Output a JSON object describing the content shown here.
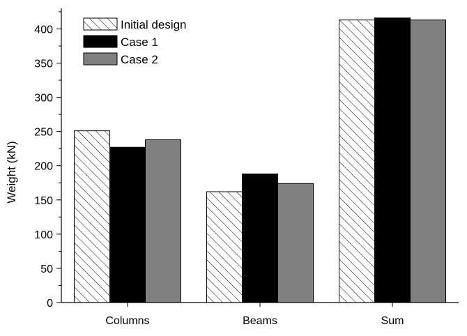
{
  "chart_data": {
    "type": "bar",
    "categories": [
      "Columns",
      "Beams",
      "Sum"
    ],
    "series": [
      {
        "name": "Initial design",
        "values": [
          251,
          162,
          413
        ],
        "fill": "hatch"
      },
      {
        "name": "Case 1",
        "values": [
          227,
          188,
          416
        ],
        "color": "#000000"
      },
      {
        "name": "Case 2",
        "values": [
          238,
          174,
          413
        ],
        "color": "#808080"
      }
    ],
    "xlabel": "",
    "ylabel": "Weight (kN)",
    "ylim": [
      0,
      430
    ],
    "yticks": [
      0,
      50,
      100,
      150,
      200,
      250,
      300,
      350,
      400
    ],
    "legend_position": "top-left",
    "grid": false
  }
}
